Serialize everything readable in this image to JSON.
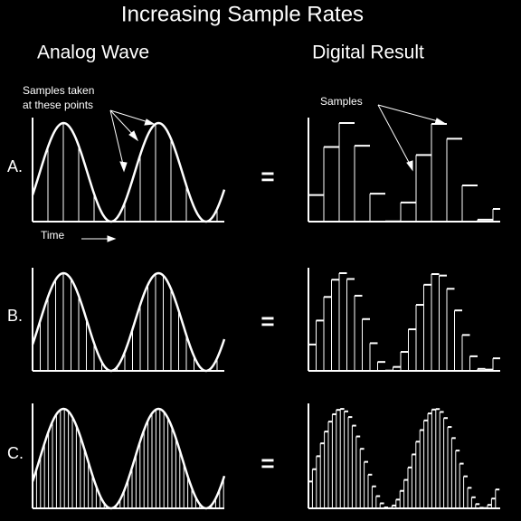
{
  "title": "Increasing Sample Rates",
  "columns": [
    "Analog Wave",
    "Digital Result"
  ],
  "rows": [
    {
      "label": "A.",
      "equals": "="
    },
    {
      "label": "B.",
      "equals": "="
    },
    {
      "label": "C.",
      "equals": "="
    }
  ],
  "annotations": {
    "samples_taken": [
      "Samples taken",
      "at these points"
    ],
    "samples": "Samples",
    "time": "Time"
  }
}
